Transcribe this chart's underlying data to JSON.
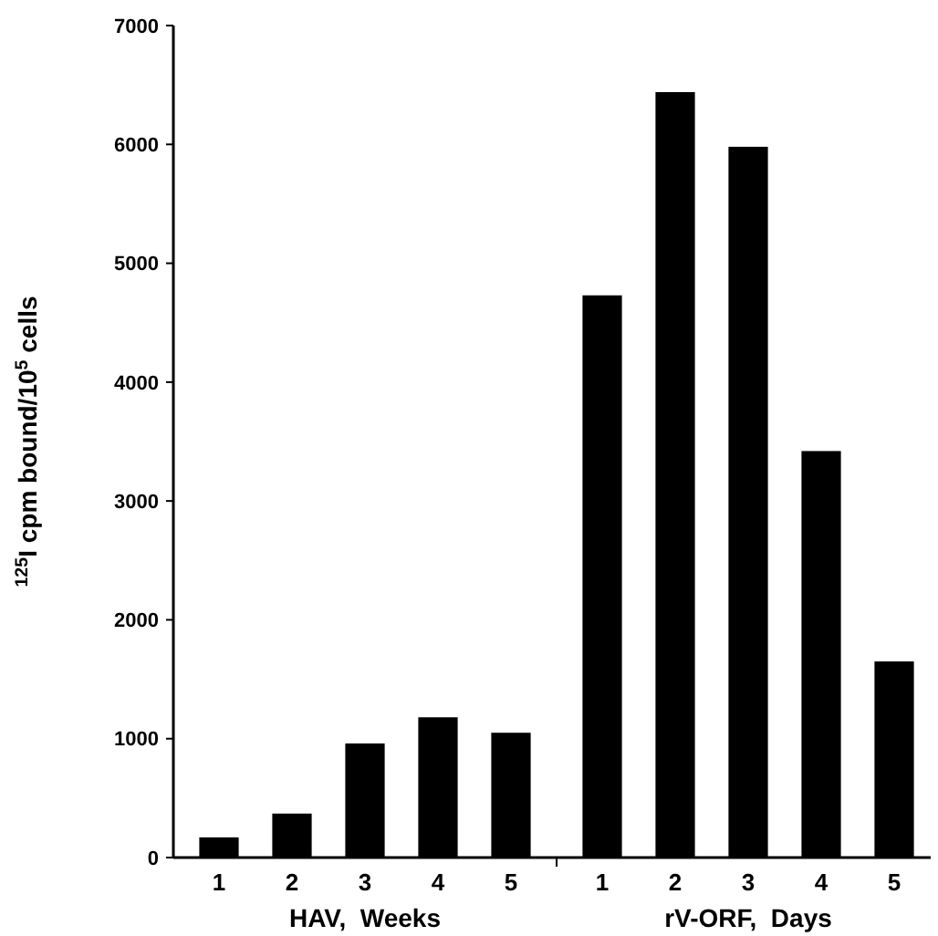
{
  "chart_data": {
    "type": "bar",
    "categories": [
      "1",
      "2",
      "3",
      "4",
      "5",
      null,
      "1",
      "2",
      "3",
      "4",
      "5"
    ],
    "values": [
      170,
      370,
      960,
      1180,
      1050,
      null,
      4730,
      6440,
      5980,
      3420,
      1650
    ],
    "color": "#000000",
    "ylim": [
      0,
      7000
    ],
    "yticks": [
      0,
      1000,
      2000,
      3000,
      4000,
      5000,
      6000,
      7000
    ],
    "ylabel": "$^{125}$I cpm bound/10$^{5}$ cells",
    "annotations": [
      "HAV,  Weeks",
      "rV-ORF,  Days"
    ]
  }
}
